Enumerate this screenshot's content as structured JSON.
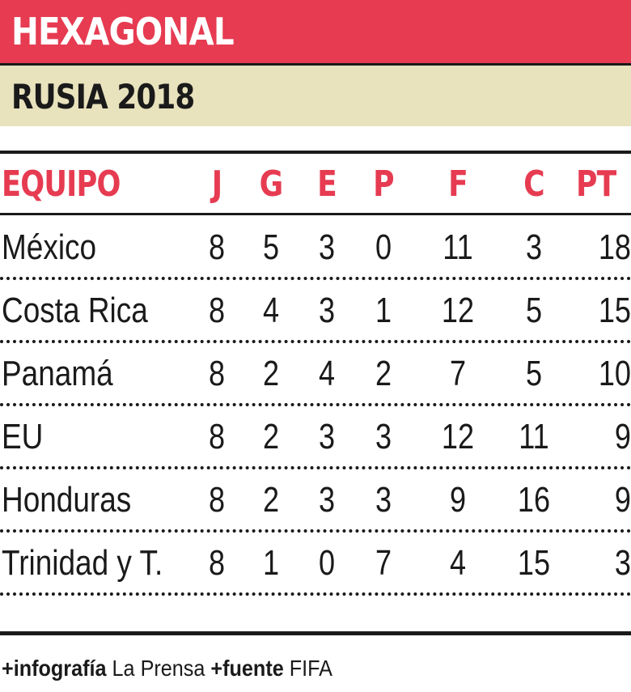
{
  "title": "HEXAGONAL",
  "subtitle": "RUSIA 2018",
  "colors": {
    "title_bg": "#e63b51",
    "subtitle_bg": "#e8e2bd",
    "header_text": "#e63b51",
    "text": "#1a1a1a"
  },
  "table": {
    "headers": {
      "team": "EQUIPO",
      "j": "J",
      "g": "G",
      "e": "E",
      "p": "P",
      "f": "F",
      "c": "C",
      "pt": "PT"
    },
    "rows": [
      {
        "team": "México",
        "j": "8",
        "g": "5",
        "e": "3",
        "p": "0",
        "f": "11",
        "c": "3",
        "pt": "18"
      },
      {
        "team": "Costa Rica",
        "j": "8",
        "g": "4",
        "e": "3",
        "p": "1",
        "f": "12",
        "c": "5",
        "pt": "15"
      },
      {
        "team": "Panamá",
        "j": "8",
        "g": "2",
        "e": "4",
        "p": "2",
        "f": "7",
        "c": "5",
        "pt": "10"
      },
      {
        "team": "EU",
        "j": "8",
        "g": "2",
        "e": "3",
        "p": "3",
        "f": "12",
        "c": "11",
        "pt": "9"
      },
      {
        "team": "Honduras",
        "j": "8",
        "g": "2",
        "e": "3",
        "p": "3",
        "f": "9",
        "c": "16",
        "pt": "9"
      },
      {
        "team": "Trinidad y T.",
        "j": "8",
        "g": "1",
        "e": "0",
        "p": "7",
        "f": "4",
        "c": "15",
        "pt": "3"
      }
    ]
  },
  "footer": {
    "infografia_label": "+infografía",
    "infografia_value": "La Prensa",
    "fuente_label": "+fuente",
    "fuente_value": "FIFA"
  }
}
